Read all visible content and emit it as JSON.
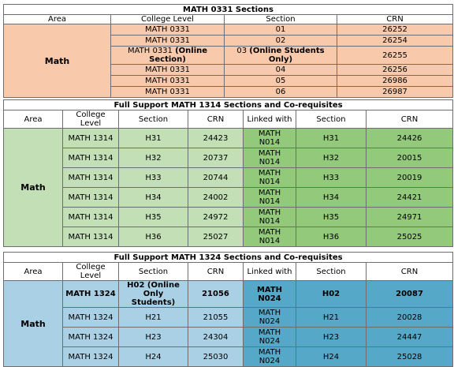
{
  "t1": {
    "title": "MATH 0331 Sections",
    "headers": [
      "Area",
      "College Level",
      "Section",
      "CRN"
    ],
    "area": "Math",
    "rows": [
      {
        "level": "MATH 0331",
        "level_suffix": "",
        "section": "01",
        "section_suffix": "",
        "crn": "26252"
      },
      {
        "level": "MATH 0331",
        "level_suffix": "",
        "section": "02",
        "section_suffix": "",
        "crn": "26254"
      },
      {
        "level": "MATH 0331",
        "level_suffix": "(Online Section)",
        "section": "03",
        "section_suffix": "(Online Students Only)",
        "crn": "26255"
      },
      {
        "level": "MATH 0331",
        "level_suffix": "",
        "section": "04",
        "section_suffix": "",
        "crn": "26256"
      },
      {
        "level": "MATH 0331",
        "level_suffix": "",
        "section": "05",
        "section_suffix": "",
        "crn": "26986"
      },
      {
        "level": "MATH 0331",
        "level_suffix": "",
        "section": "06",
        "section_suffix": "",
        "crn": "26987"
      }
    ]
  },
  "t2": {
    "title": "Full Support MATH 1314 Sections and Co-requisites",
    "headers": [
      "Area",
      "College Level",
      "Section",
      "CRN",
      "Linked with",
      "Section",
      "CRN"
    ],
    "area": "Math",
    "rows": [
      {
        "level": "MATH 1314",
        "section": "H31",
        "crn": "24423",
        "link1": "MATH",
        "link2": "N014",
        "co_section": "H31",
        "co_crn": "24426"
      },
      {
        "level": "MATH 1314",
        "section": "H32",
        "crn": "20737",
        "link1": "MATH",
        "link2": "N014",
        "co_section": "H32",
        "co_crn": "20015"
      },
      {
        "level": "MATH 1314",
        "section": "H33",
        "crn": "20744",
        "link1": "MATH",
        "link2": "N014",
        "co_section": "H33",
        "co_crn": "20019"
      },
      {
        "level": "MATH 1314",
        "section": "H34",
        "crn": "24002",
        "link1": "MATH",
        "link2": "N014",
        "co_section": "H34",
        "co_crn": "24421"
      },
      {
        "level": "MATH 1314",
        "section": "H35",
        "crn": "24972",
        "link1": "MATH",
        "link2": "N014",
        "co_section": "H35",
        "co_crn": "24971"
      },
      {
        "level": "MATH 1314",
        "section": "H36",
        "crn": "25027",
        "link1": "MATH",
        "link2": "N014",
        "co_section": "H36",
        "co_crn": "25025"
      }
    ]
  },
  "t3": {
    "title": "Full Support MATH 1324 Sections and Co-requisites",
    "headers": [
      "Area",
      "College Level",
      "Section",
      "CRN",
      "Linked with",
      "Section",
      "CRN"
    ],
    "area": "Math",
    "rows": [
      {
        "level": "MATH 1324",
        "section": "H02 (Online Only Students)",
        "crn": "21056",
        "link1": "MATH",
        "link2": "N024",
        "co_section": "H02",
        "co_crn": "20087"
      },
      {
        "level": "MATH 1324",
        "section": "H21",
        "crn": "21055",
        "link1": "MATH",
        "link2": "N024",
        "co_section": "H21",
        "co_crn": "20028"
      },
      {
        "level": "MATH 1324",
        "section": "H23",
        "crn": "24304",
        "link1": "MATH",
        "link2": "N024",
        "co_section": "H23",
        "co_crn": "24447"
      },
      {
        "level": "MATH 1324",
        "section": "H24",
        "crn": "25030",
        "link1": "MATH",
        "link2": "N024",
        "co_section": "H24",
        "co_crn": "25028"
      }
    ]
  },
  "colors": {
    "t1_fill": "#f8c9ab",
    "t2_fill": "#c2dfb5",
    "t2_accent": "#92c97a",
    "t3_fill": "#a9d0e4",
    "t3_accent": "#55a8c7"
  }
}
